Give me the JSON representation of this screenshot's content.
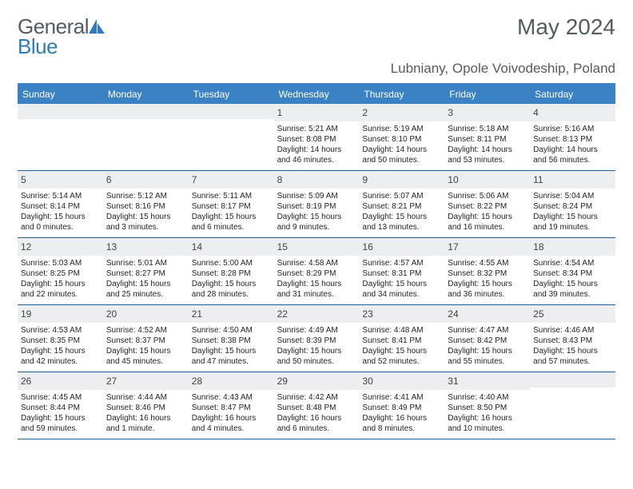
{
  "logo": {
    "text1": "General",
    "text2": "Blue"
  },
  "title": "May 2024",
  "location": "Lubniany, Opole Voivodeship, Poland",
  "colors": {
    "header_bg": "#3b82c4",
    "accent_line": "#2c5c88",
    "daynum_bg": "#eceef0",
    "text": "#555b62",
    "body_text": "#222426"
  },
  "weekdays": [
    "Sunday",
    "Monday",
    "Tuesday",
    "Wednesday",
    "Thursday",
    "Friday",
    "Saturday"
  ],
  "weeks": [
    [
      null,
      null,
      null,
      {
        "n": "1",
        "sr": "5:21 AM",
        "ss": "8:08 PM",
        "dl": "14 hours and 46 minutes."
      },
      {
        "n": "2",
        "sr": "5:19 AM",
        "ss": "8:10 PM",
        "dl": "14 hours and 50 minutes."
      },
      {
        "n": "3",
        "sr": "5:18 AM",
        "ss": "8:11 PM",
        "dl": "14 hours and 53 minutes."
      },
      {
        "n": "4",
        "sr": "5:16 AM",
        "ss": "8:13 PM",
        "dl": "14 hours and 56 minutes."
      }
    ],
    [
      {
        "n": "5",
        "sr": "5:14 AM",
        "ss": "8:14 PM",
        "dl": "15 hours and 0 minutes."
      },
      {
        "n": "6",
        "sr": "5:12 AM",
        "ss": "8:16 PM",
        "dl": "15 hours and 3 minutes."
      },
      {
        "n": "7",
        "sr": "5:11 AM",
        "ss": "8:17 PM",
        "dl": "15 hours and 6 minutes."
      },
      {
        "n": "8",
        "sr": "5:09 AM",
        "ss": "8:19 PM",
        "dl": "15 hours and 9 minutes."
      },
      {
        "n": "9",
        "sr": "5:07 AM",
        "ss": "8:21 PM",
        "dl": "15 hours and 13 minutes."
      },
      {
        "n": "10",
        "sr": "5:06 AM",
        "ss": "8:22 PM",
        "dl": "15 hours and 16 minutes."
      },
      {
        "n": "11",
        "sr": "5:04 AM",
        "ss": "8:24 PM",
        "dl": "15 hours and 19 minutes."
      }
    ],
    [
      {
        "n": "12",
        "sr": "5:03 AM",
        "ss": "8:25 PM",
        "dl": "15 hours and 22 minutes."
      },
      {
        "n": "13",
        "sr": "5:01 AM",
        "ss": "8:27 PM",
        "dl": "15 hours and 25 minutes."
      },
      {
        "n": "14",
        "sr": "5:00 AM",
        "ss": "8:28 PM",
        "dl": "15 hours and 28 minutes."
      },
      {
        "n": "15",
        "sr": "4:58 AM",
        "ss": "8:29 PM",
        "dl": "15 hours and 31 minutes."
      },
      {
        "n": "16",
        "sr": "4:57 AM",
        "ss": "8:31 PM",
        "dl": "15 hours and 34 minutes."
      },
      {
        "n": "17",
        "sr": "4:55 AM",
        "ss": "8:32 PM",
        "dl": "15 hours and 36 minutes."
      },
      {
        "n": "18",
        "sr": "4:54 AM",
        "ss": "8:34 PM",
        "dl": "15 hours and 39 minutes."
      }
    ],
    [
      {
        "n": "19",
        "sr": "4:53 AM",
        "ss": "8:35 PM",
        "dl": "15 hours and 42 minutes."
      },
      {
        "n": "20",
        "sr": "4:52 AM",
        "ss": "8:37 PM",
        "dl": "15 hours and 45 minutes."
      },
      {
        "n": "21",
        "sr": "4:50 AM",
        "ss": "8:38 PM",
        "dl": "15 hours and 47 minutes."
      },
      {
        "n": "22",
        "sr": "4:49 AM",
        "ss": "8:39 PM",
        "dl": "15 hours and 50 minutes."
      },
      {
        "n": "23",
        "sr": "4:48 AM",
        "ss": "8:41 PM",
        "dl": "15 hours and 52 minutes."
      },
      {
        "n": "24",
        "sr": "4:47 AM",
        "ss": "8:42 PM",
        "dl": "15 hours and 55 minutes."
      },
      {
        "n": "25",
        "sr": "4:46 AM",
        "ss": "8:43 PM",
        "dl": "15 hours and 57 minutes."
      }
    ],
    [
      {
        "n": "26",
        "sr": "4:45 AM",
        "ss": "8:44 PM",
        "dl": "15 hours and 59 minutes."
      },
      {
        "n": "27",
        "sr": "4:44 AM",
        "ss": "8:46 PM",
        "dl": "16 hours and 1 minute."
      },
      {
        "n": "28",
        "sr": "4:43 AM",
        "ss": "8:47 PM",
        "dl": "16 hours and 4 minutes."
      },
      {
        "n": "29",
        "sr": "4:42 AM",
        "ss": "8:48 PM",
        "dl": "16 hours and 6 minutes."
      },
      {
        "n": "30",
        "sr": "4:41 AM",
        "ss": "8:49 PM",
        "dl": "16 hours and 8 minutes."
      },
      {
        "n": "31",
        "sr": "4:40 AM",
        "ss": "8:50 PM",
        "dl": "16 hours and 10 minutes."
      },
      null
    ]
  ],
  "labels": {
    "sunrise": "Sunrise:",
    "sunset": "Sunset:",
    "daylight": "Daylight:"
  }
}
